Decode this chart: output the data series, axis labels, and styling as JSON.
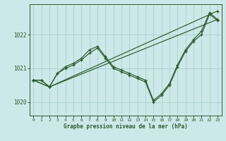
{
  "xlabel": "Graphe pression niveau de la mer (hPa)",
  "background_color": "#cde8e8",
  "grid_color": "#a0cccc",
  "line_color": "#2d5a2d",
  "xlim": [
    -0.5,
    23.5
  ],
  "ylim": [
    1019.6,
    1022.9
  ],
  "yticks": [
    1020,
    1021,
    1022
  ],
  "xticks": [
    0,
    1,
    2,
    3,
    4,
    5,
    6,
    7,
    8,
    9,
    10,
    11,
    12,
    13,
    14,
    15,
    16,
    17,
    18,
    19,
    20,
    21,
    22,
    23
  ],
  "y_zigzag1": [
    1020.65,
    1020.65,
    1020.45,
    1020.85,
    1021.05,
    1021.15,
    1021.3,
    1021.55,
    1021.65,
    1021.35,
    1021.05,
    1020.95,
    1020.85,
    1020.75,
    1020.65,
    1020.05,
    1020.25,
    1020.55,
    1021.1,
    1021.55,
    1021.85,
    1022.1,
    1022.65,
    1022.45
  ],
  "y_zigzag2": [
    1020.65,
    1020.65,
    1020.45,
    1020.85,
    1021.0,
    1021.1,
    1021.25,
    1021.45,
    1021.6,
    1021.3,
    1021.0,
    1020.9,
    1020.8,
    1020.7,
    1020.6,
    1020.0,
    1020.2,
    1020.5,
    1021.05,
    1021.5,
    1021.8,
    1022.0,
    1022.6,
    1022.42
  ],
  "trend1_x": [
    0,
    2,
    23
  ],
  "trend1_y": [
    1020.65,
    1020.45,
    1022.7
  ],
  "trend2_x": [
    0,
    2,
    23
  ],
  "trend2_y": [
    1020.65,
    1020.45,
    1022.45
  ]
}
